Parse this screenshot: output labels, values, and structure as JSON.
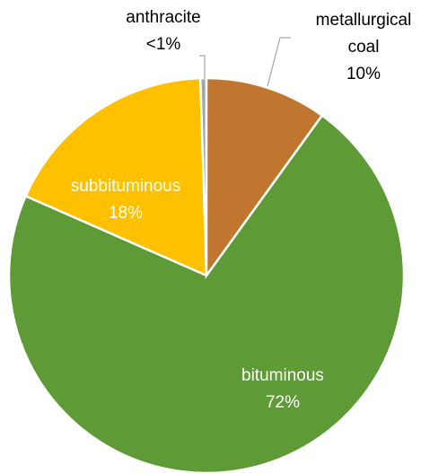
{
  "chart_data": {
    "type": "pie",
    "categories": [
      "metallurgical coal",
      "bituminous",
      "subbituminous",
      "anthracite"
    ],
    "values": [
      10,
      72,
      18,
      0.5
    ],
    "value_labels": [
      "10%",
      "72%",
      "18%",
      "<1%"
    ],
    "colors": [
      "#c0762f",
      "#5e9a36",
      "#ffc000",
      "#a5a5a5"
    ]
  }
}
